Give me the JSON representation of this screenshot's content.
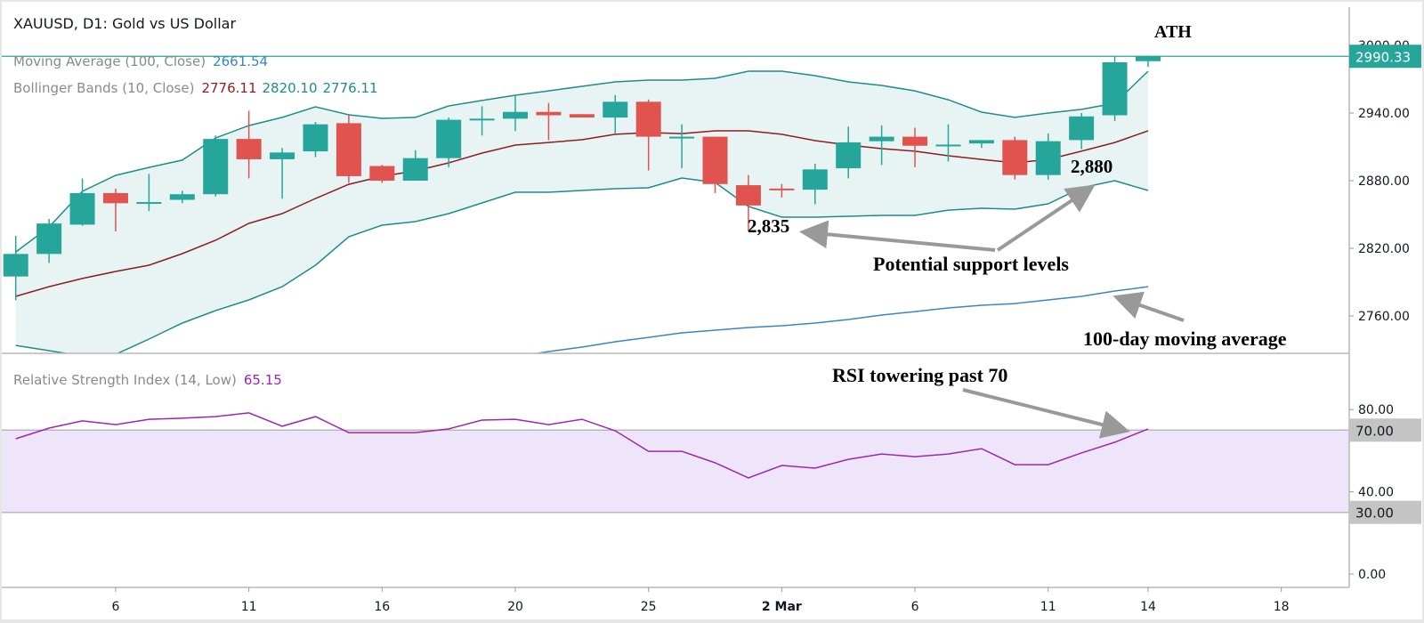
{
  "header": {
    "title": "XAUUSD, D1: Gold vs US Dollar",
    "ma_label": "Moving Average (100, Close)",
    "ma_value": "2661.54",
    "bb_label": "Bollinger Bands (10, Close)",
    "bb_values": [
      "2776.11",
      "2820.10",
      "2776.11"
    ],
    "rsi_label": "Relative Strength Index (14, Low)",
    "rsi_value": "65.15"
  },
  "annotations": {
    "ath": "ATH",
    "low1": "2,835",
    "low2": "2,880",
    "support": "Potential support levels",
    "ma100": "100-day moving average",
    "rsi": "RSI towering past 70"
  },
  "colors": {
    "up": "#26a69a",
    "down": "#e0534f",
    "bb_band": "#1e8c8c",
    "bb_fill": "#e8f4f4",
    "bb_basis": "#8b1f1f",
    "ma": "#3a86c0",
    "rsi": "#9c27b0",
    "rsi_fill": "#efe5fa",
    "price_tag": "#26a69a",
    "level_tag": "#c4c4c4",
    "arrow": "#999999"
  },
  "chart_data": {
    "type": "candlestick",
    "title": "XAUUSD, D1: Gold vs US Dollar",
    "ylim": [
      2732,
      3032
    ],
    "y_ticks": [
      "3000.00",
      "2940.00",
      "2880.00",
      "2820.00",
      "2760.00"
    ],
    "last_price": "2990.33",
    "last_price_value": 2990.33,
    "x_ticks": [
      {
        "label": "6",
        "bar": 3,
        "bold": false
      },
      {
        "label": "11",
        "bar": 7,
        "bold": false
      },
      {
        "label": "16",
        "bar": 11,
        "bold": false
      },
      {
        "label": "20",
        "bar": 15,
        "bold": false
      },
      {
        "label": "25",
        "bar": 19,
        "bold": false
      },
      {
        "label": "2 Mar",
        "bar": 23,
        "bold": true
      },
      {
        "label": "6",
        "bar": 27,
        "bold": false
      },
      {
        "label": "11",
        "bar": 31,
        "bold": false
      },
      {
        "label": "14",
        "bar": 34,
        "bold": false
      },
      {
        "label": "18",
        "bar": 38,
        "bold": false
      }
    ],
    "ohlc": [
      [
        2795,
        2831,
        2774,
        2815
      ],
      [
        2815,
        2846,
        2807,
        2842
      ],
      [
        2841,
        2882,
        2840,
        2869
      ],
      [
        2869,
        2873,
        2835,
        2860
      ],
      [
        2860,
        2886,
        2853,
        2861
      ],
      [
        2863,
        2871,
        2860,
        2868
      ],
      [
        2868,
        2920,
        2866,
        2917
      ],
      [
        2917,
        2942,
        2882,
        2899
      ],
      [
        2899,
        2909,
        2864,
        2905
      ],
      [
        2906,
        2932,
        2901,
        2930
      ],
      [
        2931,
        2939,
        2878,
        2884
      ],
      [
        2893,
        2894,
        2878,
        2880
      ],
      [
        2880,
        2907,
        2880,
        2900
      ],
      [
        2900,
        2936,
        2892,
        2934
      ],
      [
        2934,
        2946,
        2920,
        2935
      ],
      [
        2935,
        2955,
        2924,
        2941
      ],
      [
        2941,
        2949,
        2916,
        2938
      ],
      [
        2939,
        2939,
        2936,
        2936
      ],
      [
        2936,
        2956,
        2922,
        2950
      ],
      [
        2950,
        2952,
        2889,
        2919
      ],
      [
        2918,
        2930,
        2891,
        2919
      ],
      [
        2919,
        2919,
        2869,
        2877
      ],
      [
        2876,
        2885,
        2835,
        2858
      ],
      [
        2873,
        2877,
        2865,
        2872
      ],
      [
        2872,
        2895,
        2859,
        2890
      ],
      [
        2891,
        2928,
        2882,
        2914
      ],
      [
        2915,
        2929,
        2894,
        2919
      ],
      [
        2919,
        2927,
        2892,
        2911
      ],
      [
        2911,
        2930,
        2897,
        2912
      ],
      [
        2913,
        2916,
        2909,
        2916
      ],
      [
        2916,
        2919,
        2881,
        2885
      ],
      [
        2885,
        2922,
        2881,
        2915
      ],
      [
        2916,
        2940,
        2908,
        2937
      ],
      [
        2938,
        2990,
        2933,
        2985
      ],
      [
        2986,
        2991,
        2981,
        2990.33
      ]
    ],
    "bb_upper": [
      2816.8,
      2838.9,
      2870.5,
      2884.7,
      2891.8,
      2898.2,
      2917.9,
      2928.9,
      2936.1,
      2945.5,
      2938.4,
      2935.3,
      2936.1,
      2946.3,
      2951.1,
      2955.8,
      2959.7,
      2963.7,
      2967.6,
      2969.2,
      2969.2,
      2970.8,
      2977.1,
      2977.1,
      2973.2,
      2967.6,
      2964.5,
      2959.7,
      2951.8,
      2940.8,
      2936.1,
      2940.0,
      2943.2,
      2948.7,
      2977.1
    ],
    "bb_basis": [
      2777.4,
      2786.0,
      2793.2,
      2799.5,
      2805.0,
      2815.3,
      2827.1,
      2842.1,
      2850.8,
      2864.2,
      2876.8,
      2883.9,
      2888.7,
      2895.8,
      2904.5,
      2911.6,
      2913.9,
      2916.3,
      2921.1,
      2922.6,
      2921.8,
      2924.2,
      2924.2,
      2921.1,
      2915.5,
      2911.6,
      2908.4,
      2906.1,
      2902.1,
      2898.9,
      2895.8,
      2898.9,
      2906.1,
      2913.9,
      2924.2
    ],
    "bb_lower": [
      2733.9,
      2729.2,
      2724.5,
      2726.0,
      2739.5,
      2753.7,
      2764.7,
      2774.2,
      2786.0,
      2805.0,
      2830.3,
      2840.5,
      2843.7,
      2850.8,
      2860.3,
      2869.7,
      2869.7,
      2871.3,
      2872.9,
      2873.7,
      2882.4,
      2878.4,
      2857.1,
      2847.6,
      2847.6,
      2848.4,
      2849.2,
      2849.2,
      2853.9,
      2855.5,
      2854.7,
      2859.5,
      2873.7,
      2880.0,
      2871.3
    ],
    "ma100_start_bar": 14,
    "ma100": [
      2719.7,
      2723.7,
      2728.4,
      2732.4,
      2737.1,
      2741.0,
      2745.0,
      2747.4,
      2749.7,
      2751.3,
      2753.7,
      2756.8,
      2760.8,
      2763.9,
      2767.1,
      2769.5,
      2771.0,
      2774.2,
      2777.4,
      2782.1,
      2786.0
    ],
    "rsi": {
      "ylim": [
        -13,
        110
      ],
      "y_ticks": [
        "80.00",
        "40.00",
        "0.00"
      ],
      "levels": [
        "70.00",
        "30.00"
      ],
      "values": [
        65.8,
        71.0,
        74.5,
        72.7,
        75.3,
        75.8,
        76.6,
        78.4,
        71.9,
        76.6,
        68.8,
        68.8,
        68.8,
        70.6,
        74.9,
        75.3,
        72.7,
        75.3,
        69.7,
        59.7,
        59.7,
        54.1,
        46.8,
        52.8,
        51.5,
        55.8,
        58.4,
        57.1,
        58.4,
        61.0,
        53.2,
        53.2,
        58.9,
        64.1,
        70.6
      ]
    }
  }
}
